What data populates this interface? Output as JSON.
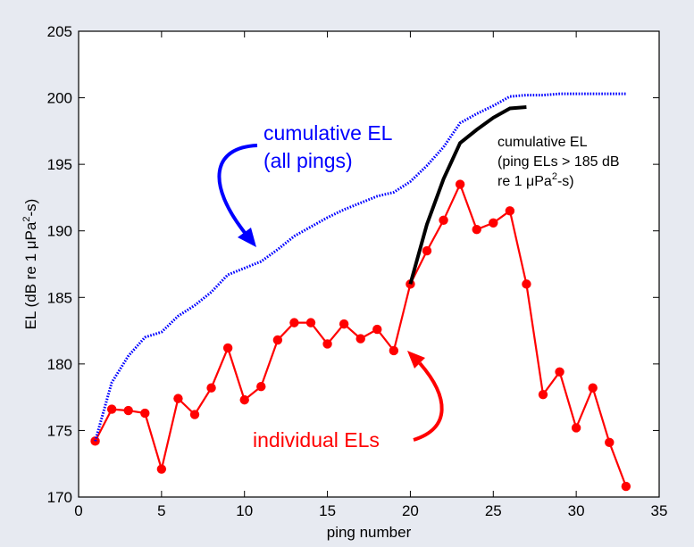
{
  "chart_data": {
    "type": "line",
    "xlabel": "ping number",
    "ylabel_parts": [
      "EL (dB re  1 μPa",
      "2",
      "-s)"
    ],
    "xlim": [
      0,
      35
    ],
    "ylim": [
      170,
      205
    ],
    "xticks": [
      0,
      5,
      10,
      15,
      20,
      25,
      30,
      35
    ],
    "yticks": [
      170,
      175,
      180,
      185,
      190,
      195,
      200,
      205
    ],
    "grid": false,
    "series": [
      {
        "key": "individual",
        "color": "#ff0000",
        "style": "solid-markers",
        "x": [
          1,
          2,
          3,
          4,
          5,
          6,
          7,
          8,
          9,
          10,
          11,
          12,
          13,
          14,
          15,
          16,
          17,
          18,
          19,
          20,
          21,
          22,
          23,
          24,
          25,
          26,
          27,
          28,
          29,
          30,
          31,
          32,
          33
        ],
        "y": [
          174.2,
          176.6,
          176.5,
          176.3,
          172.1,
          177.4,
          176.2,
          178.2,
          181.2,
          177.3,
          178.3,
          181.8,
          183.1,
          183.1,
          181.5,
          183.0,
          181.9,
          182.6,
          181.0,
          186.0,
          188.5,
          190.8,
          193.5,
          190.1,
          190.6,
          191.5,
          186.0,
          177.7,
          179.4,
          175.2,
          178.2,
          174.1,
          170.8
        ]
      },
      {
        "key": "cumulative_all",
        "color": "#0000ff",
        "style": "dotted",
        "x": [
          1,
          2,
          3,
          4,
          5,
          6,
          7,
          8,
          9,
          10,
          11,
          12,
          13,
          14,
          15,
          16,
          17,
          18,
          19,
          20,
          21,
          22,
          23,
          24,
          25,
          26,
          27,
          28,
          29,
          30,
          31,
          32,
          33
        ],
        "y": [
          174.2,
          178.6,
          180.6,
          182.0,
          182.4,
          183.6,
          184.4,
          185.4,
          186.7,
          187.2,
          187.7,
          188.6,
          189.6,
          190.3,
          191.0,
          191.6,
          192.1,
          192.6,
          192.9,
          193.7,
          194.9,
          196.3,
          198.1,
          198.8,
          199.4,
          200.1,
          200.2,
          200.2,
          200.3,
          200.3,
          200.3,
          200.3,
          200.3
        ]
      },
      {
        "key": "cumulative_185",
        "color": "#000000",
        "style": "solid-thick",
        "x": [
          20,
          21,
          22,
          23,
          24,
          25,
          26,
          27
        ],
        "y": [
          186.0,
          190.5,
          193.9,
          196.6,
          197.6,
          198.5,
          199.2,
          199.3
        ]
      }
    ],
    "annotations": {
      "blue_line1": "cumulative EL",
      "blue_line2": "(all pings)",
      "red": "individual ELs",
      "black_line1": "cumulative EL",
      "black_line2": "(ping ELs > 185 dB",
      "black_line3_parts": [
        "re  1 μPa",
        "2",
        "-s)"
      ]
    }
  }
}
